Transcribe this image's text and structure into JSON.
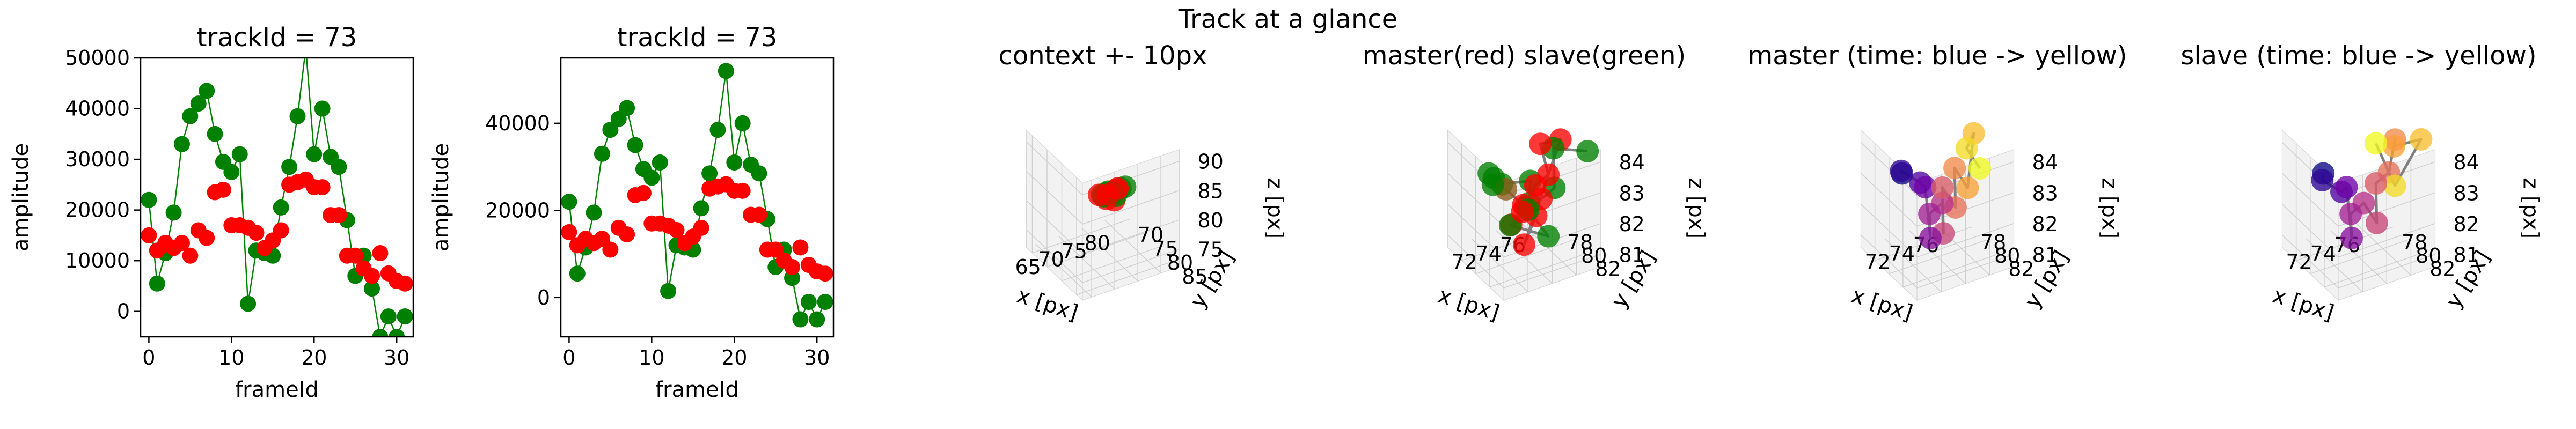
{
  "figure": {
    "suptitle": "Track at a glance"
  },
  "chart_data": [
    {
      "type": "line",
      "title": "trackId = 73",
      "xlabel": "frameId",
      "ylabel": "amplitude",
      "xlim": [
        -1,
        32
      ],
      "ylim": [
        -5000,
        50000
      ],
      "xticks": [
        0,
        10,
        20,
        30
      ],
      "yticks": [
        0,
        10000,
        20000,
        30000,
        40000,
        50000
      ],
      "yticklabels": [
        "0",
        "10000",
        "20000",
        "30000",
        "40000",
        "50000"
      ],
      "grid": false,
      "series": [
        {
          "color": "#008000",
          "marker": "circle",
          "line": true,
          "x": [
            0,
            1,
            2,
            3,
            4,
            5,
            6,
            7,
            8,
            9,
            10,
            11,
            12,
            13,
            14,
            15,
            16,
            17,
            18,
            19,
            20,
            21,
            22,
            23,
            24,
            25,
            26,
            27,
            28,
            29,
            30,
            31
          ],
          "y": [
            22000,
            5500,
            11500,
            19500,
            33000,
            38500,
            41000,
            43500,
            35000,
            29500,
            27500,
            31000,
            1500,
            12000,
            11500,
            11000,
            20500,
            28500,
            38500,
            52000,
            31000,
            40000,
            30500,
            28500,
            18000,
            7000,
            11000,
            4500,
            -5000,
            -1000,
            -5000,
            -1000
          ]
        },
        {
          "color": "#ff0000",
          "marker": "circle",
          "line": false,
          "x": [
            0,
            1,
            2,
            3,
            4,
            5,
            6,
            7,
            8,
            9,
            10,
            11,
            12,
            13,
            14,
            15,
            16,
            17,
            18,
            19,
            20,
            21,
            22,
            23,
            24,
            25,
            26,
            27,
            28,
            29,
            30,
            31
          ],
          "y": [
            15000,
            12000,
            13500,
            12500,
            13500,
            11000,
            16000,
            14500,
            23500,
            24000,
            17000,
            17000,
            16500,
            15500,
            12500,
            14000,
            16000,
            25000,
            25500,
            26000,
            24500,
            24500,
            19000,
            19000,
            11000,
            11000,
            8500,
            7000,
            11500,
            7500,
            6000,
            5500
          ]
        }
      ]
    },
    {
      "type": "line",
      "title": "trackId = 73",
      "xlabel": "frameId",
      "ylabel": "amplitude",
      "xlim": [
        -1,
        32
      ],
      "ylim": [
        -9000,
        55000
      ],
      "xticks": [
        0,
        10,
        20,
        30
      ],
      "yticks": [
        0,
        20000,
        40000
      ],
      "yticklabels": [
        "0",
        "20000",
        "40000"
      ],
      "grid": false,
      "series": [
        {
          "color": "#008000",
          "marker": "circle",
          "line": true,
          "x": [
            0,
            1,
            2,
            3,
            4,
            5,
            6,
            7,
            8,
            9,
            10,
            11,
            12,
            13,
            14,
            15,
            16,
            17,
            18,
            19,
            20,
            21,
            22,
            23,
            24,
            25,
            26,
            27,
            28,
            29,
            30,
            31
          ],
          "y": [
            22000,
            5500,
            11500,
            19500,
            33000,
            38500,
            41000,
            43500,
            35000,
            29500,
            27500,
            31000,
            1500,
            12000,
            11500,
            11000,
            20500,
            28500,
            38500,
            52000,
            31000,
            40000,
            30500,
            28500,
            18000,
            7000,
            11000,
            4500,
            -5000,
            -1000,
            -5000,
            -1000
          ]
        },
        {
          "color": "#ff0000",
          "marker": "circle",
          "line": false,
          "x": [
            0,
            1,
            2,
            3,
            4,
            5,
            6,
            7,
            8,
            9,
            10,
            11,
            12,
            13,
            14,
            15,
            16,
            17,
            18,
            19,
            20,
            21,
            22,
            23,
            24,
            25,
            26,
            27,
            28,
            29,
            30,
            31
          ],
          "y": [
            15000,
            12000,
            13500,
            12500,
            13500,
            11000,
            16000,
            14500,
            23500,
            24000,
            17000,
            17000,
            16500,
            15500,
            12500,
            14000,
            16000,
            25000,
            25500,
            26000,
            24500,
            24500,
            19000,
            19000,
            11000,
            11000,
            8500,
            7000,
            11500,
            7500,
            6000,
            5500
          ]
        }
      ]
    },
    {
      "type": "scatter",
      "projection": "3d",
      "title": "context +- 10px",
      "xlabel": "x [px]",
      "ylabel": "y [px]",
      "zlabel": "z [px]",
      "xlim": [
        63,
        84
      ],
      "ylim": [
        68,
        87
      ],
      "zlim": [
        72,
        92
      ],
      "xticks": [
        65,
        70,
        75,
        80
      ],
      "yticks": [
        70,
        75,
        80,
        85
      ],
      "zticks": [
        75,
        80,
        85,
        90
      ],
      "series": [
        {
          "color": "#008000",
          "points": [
            [
              73,
              78,
              83
            ],
            [
              74,
              77,
              82
            ],
            [
              75,
              78,
              82.5
            ],
            [
              76,
              77,
              82
            ],
            [
              77,
              78,
              83
            ],
            [
              75,
              77,
              82.5
            ],
            [
              74,
              78,
              83
            ],
            [
              76,
              78,
              82
            ],
            [
              78,
              78,
              83
            ]
          ]
        },
        {
          "color": "#ff0000",
          "points": [
            [
              74,
              78,
              82
            ],
            [
              75,
              77,
              82
            ],
            [
              76,
              78,
              83
            ],
            [
              77,
              77,
              82.5
            ],
            [
              73,
              77,
              82.5
            ],
            [
              75,
              79,
              82
            ]
          ]
        }
      ],
      "track_color": "#808080"
    },
    {
      "type": "scatter",
      "projection": "3d",
      "title": "master(red) slave(green)",
      "xlabel": "x [px]",
      "ylabel": "y [px]",
      "zlabel": "z [px]",
      "xlim": [
        70,
        78
      ],
      "ylim": [
        76,
        84
      ],
      "zlim": [
        80.6,
        84.4
      ],
      "xticks": [
        72,
        74,
        76
      ],
      "yticks": [
        78,
        80,
        82
      ],
      "zticks": [
        81,
        82,
        83,
        84
      ],
      "series": [
        {
          "color": "#008000",
          "points": [
            [
              70.5,
              81,
              84
            ],
            [
              71,
              82,
              83.8
            ],
            [
              71.5,
              80,
              83.5
            ],
            [
              72,
              79,
              83
            ],
            [
              74.5,
              80,
              83
            ],
            [
              75,
              79,
              82
            ],
            [
              75.5,
              78,
              81.5
            ],
            [
              76,
              80,
              81
            ],
            [
              74,
              78,
              81.2
            ],
            [
              76.5,
              80,
              82.5
            ],
            [
              77,
              79,
              83.5
            ],
            [
              77.5,
              83,
              84.2
            ]
          ]
        },
        {
          "color": "#ff0000",
          "points": [
            [
              74.5,
              79,
              82
            ],
            [
              75,
              78,
              81.5
            ],
            [
              75.5,
              79,
              82.5
            ],
            [
              76,
              80,
              83
            ],
            [
              76.5,
              78,
              83.5
            ],
            [
              77,
              80,
              84
            ],
            [
              74,
              80,
              81
            ],
            [
              75,
              80,
              81.8
            ],
            [
              73.5,
              79,
              81.5
            ],
            [
              76,
              79,
              82
            ]
          ]
        },
        {
          "color": "#8b5a1a",
          "points": [
            [
              72.5,
              80,
              83
            ],
            [
              73.5,
              81,
              82.5
            ]
          ]
        }
      ],
      "track_color": "#808080"
    },
    {
      "type": "scatter",
      "projection": "3d",
      "title": "master (time: blue -> yellow)",
      "xlabel": "x [px]",
      "ylabel": "y [px]",
      "zlabel": "z [px]",
      "xlim": [
        70,
        78
      ],
      "ylim": [
        76,
        84
      ],
      "zlim": [
        80.6,
        84.4
      ],
      "xticks": [
        72,
        74,
        76
      ],
      "yticks": [
        78,
        80,
        82
      ],
      "zticks": [
        81,
        82,
        83,
        84
      ],
      "colormap": "plasma",
      "series": [
        {
          "color": "plasma",
          "points": [
            [
              70.5,
              81,
              84
            ],
            [
              71,
              80,
              83.8
            ],
            [
              72,
              81,
              83.5
            ],
            [
              73,
              80,
              83
            ],
            [
              74,
              79,
              81
            ],
            [
              74.5,
              78,
              81.5
            ],
            [
              75,
              79,
              82
            ],
            [
              74.5,
              80,
              81.3
            ],
            [
              75,
              79,
              82.5
            ],
            [
              75.5,
              80,
              82
            ],
            [
              76,
              79,
              83
            ],
            [
              76.5,
              80,
              82.5
            ],
            [
              77,
              80,
              84.2
            ],
            [
              77,
              79,
              83.5
            ],
            [
              77.5,
              80,
              83
            ]
          ]
        }
      ],
      "track_color": "#808080"
    },
    {
      "type": "scatter",
      "projection": "3d",
      "title": "slave (time: blue -> yellow)",
      "xlabel": "x [px]",
      "ylabel": "y [px]",
      "zlabel": "z [px]",
      "xlim": [
        70,
        78
      ],
      "ylim": [
        76,
        84
      ],
      "zlim": [
        80.6,
        84.4
      ],
      "xticks": [
        72,
        74,
        76
      ],
      "yticks": [
        78,
        80,
        82
      ],
      "zticks": [
        81,
        82,
        83,
        84
      ],
      "colormap": "plasma",
      "series": [
        {
          "color": "plasma",
          "points": [
            [
              70.5,
              81,
              84
            ],
            [
              71,
              80,
              83.5
            ],
            [
              72,
              81,
              83.2
            ],
            [
              73,
              80,
              83
            ],
            [
              74,
              79,
              81
            ],
            [
              74.5,
              78,
              81.5
            ],
            [
              75,
              79,
              82
            ],
            [
              75.5,
              80,
              81.5
            ],
            [
              76,
              79,
              82.5
            ],
            [
              76.5,
              80,
              83
            ],
            [
              77,
              80,
              84
            ],
            [
              77.5,
              79,
              83.5
            ],
            [
              78,
              82,
              84.3
            ],
            [
              77,
              80,
              82.5
            ],
            [
              76,
              79,
              83.8
            ]
          ]
        }
      ],
      "track_color": "#808080"
    }
  ]
}
